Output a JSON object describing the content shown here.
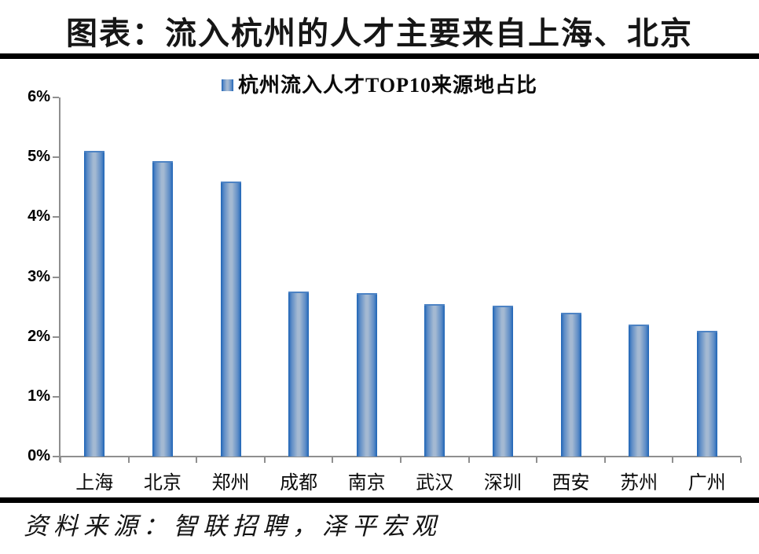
{
  "figure": {
    "title": "图表：流入杭州的人才主要来自上海、北京",
    "source_note": "资料来源：智联招聘，泽平宏观"
  },
  "chart_data": {
    "type": "bar",
    "title": "杭州流入人才TOP10来源地占比",
    "legend": {
      "position": "top-center",
      "label": "杭州流入人才TOP10来源地占比",
      "swatch_icon": "gradient-blue-square"
    },
    "categories": [
      "上海",
      "北京",
      "郑州",
      "成都",
      "南京",
      "武汉",
      "深圳",
      "西安",
      "苏州",
      "广州"
    ],
    "values": [
      5.11,
      4.93,
      4.6,
      2.76,
      2.73,
      2.55,
      2.52,
      2.4,
      2.2,
      2.1
    ],
    "unit": "%",
    "xlabel": "",
    "ylabel": "",
    "ylim": [
      0,
      6
    ],
    "ytick_step": 1,
    "ytick_labels": [
      "0%",
      "1%",
      "2%",
      "3%",
      "4%",
      "5%",
      "6%"
    ],
    "grid": false,
    "colors": {
      "bar_edge": "#1d64b6",
      "bar_mid": "#a4b9d2",
      "bar_top_edge": "#4d83c4",
      "axis": "#8f8f8f",
      "text": "#111111"
    }
  }
}
